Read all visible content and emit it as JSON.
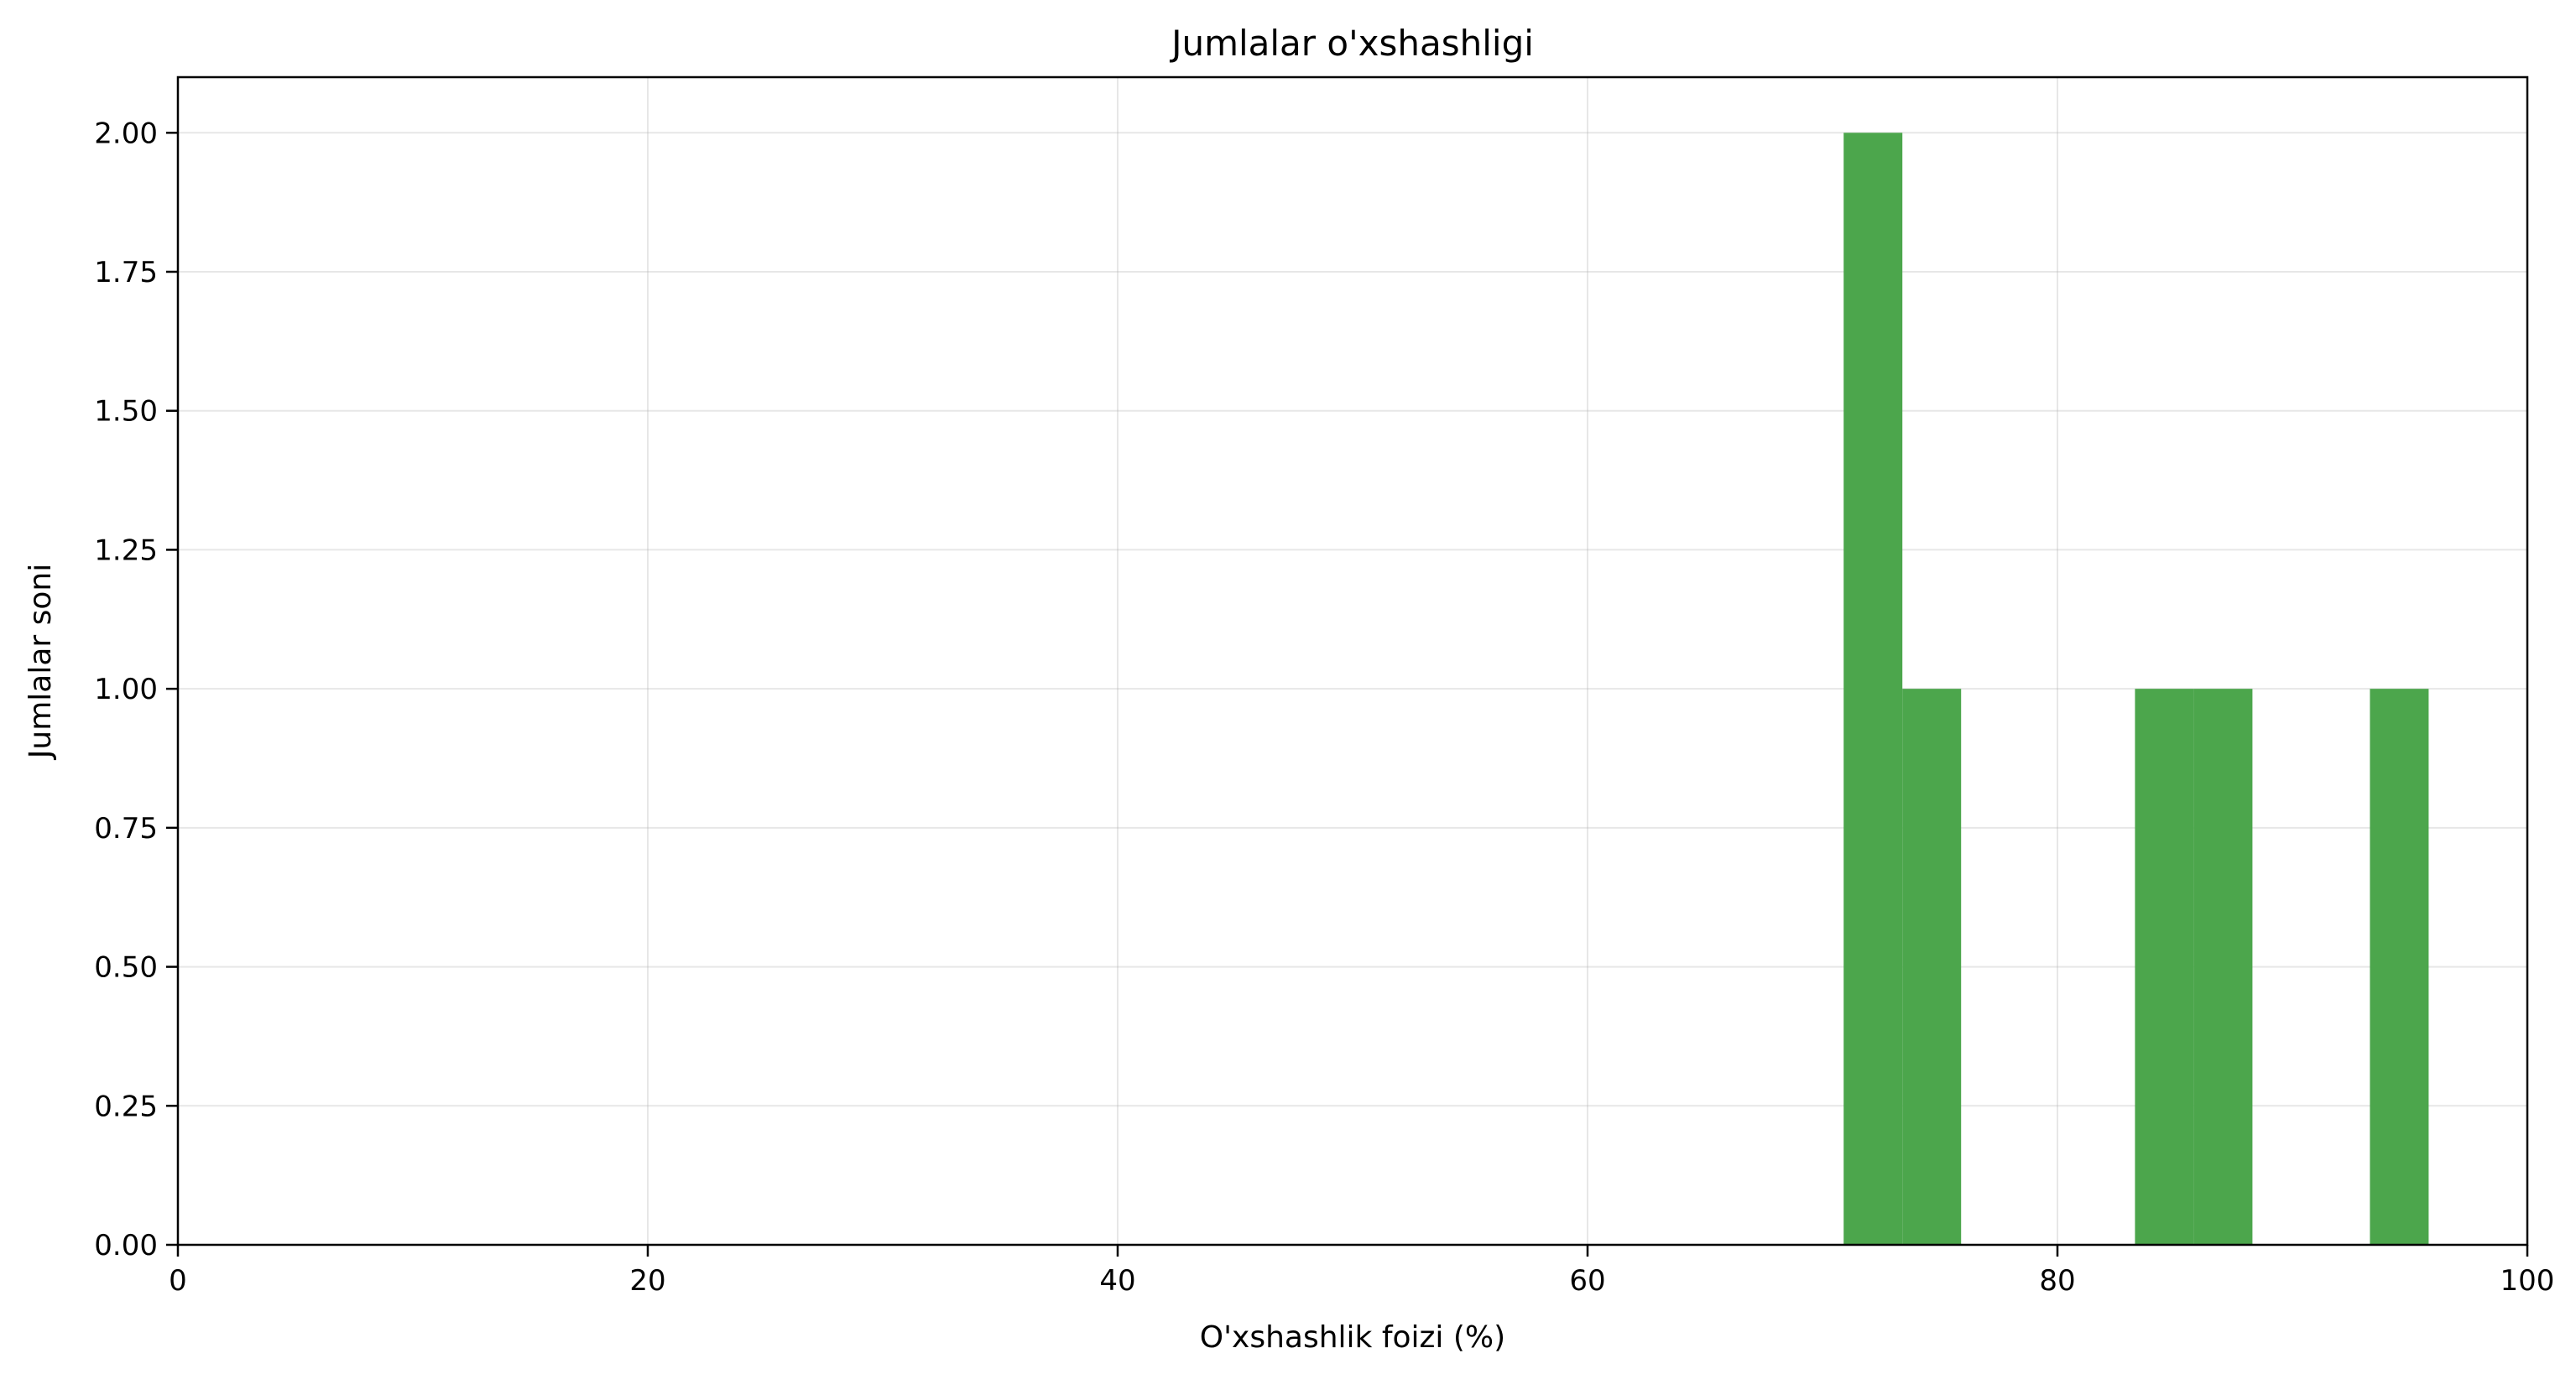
{
  "chart_data": {
    "type": "bar",
    "title": "Jumlalar o'xshashligi",
    "xlabel": "O'xshashlik foizi (%)",
    "ylabel": "Jumlalar soni",
    "xlim": [
      0,
      100
    ],
    "ylim": [
      0,
      2.1
    ],
    "x_ticks": [
      0,
      20,
      40,
      60,
      80,
      100
    ],
    "x_tick_labels": [
      "0",
      "20",
      "40",
      "60",
      "80",
      "100"
    ],
    "y_ticks": [
      0,
      0.25,
      0.5,
      0.75,
      1.0,
      1.25,
      1.5,
      1.75,
      2.0
    ],
    "y_tick_labels": [
      "0.00",
      "0.25",
      "0.50",
      "0.75",
      "1.00",
      "1.25",
      "1.50",
      "1.75",
      "2.00"
    ],
    "grid": true,
    "bar_color": "#4ca64c",
    "bins": [
      {
        "start": 70.9,
        "end": 73.4,
        "count": 2
      },
      {
        "start": 73.4,
        "end": 75.9,
        "count": 1
      },
      {
        "start": 83.3,
        "end": 85.8,
        "count": 1
      },
      {
        "start": 85.8,
        "end": 88.3,
        "count": 1
      },
      {
        "start": 93.3,
        "end": 95.8,
        "count": 1
      }
    ]
  }
}
